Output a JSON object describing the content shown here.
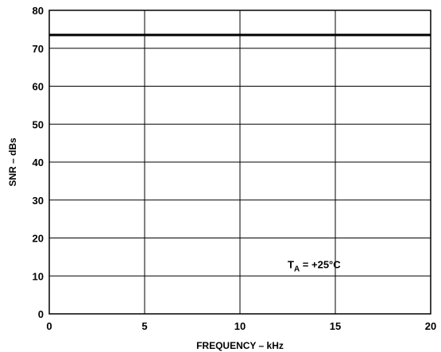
{
  "chart_data": {
    "type": "line",
    "title": "",
    "xlabel": "FREQUENCY – kHz",
    "ylabel": "SNR – dBs",
    "xlim": [
      0,
      20
    ],
    "ylim": [
      0,
      80
    ],
    "x_ticks": [
      0,
      5,
      10,
      15,
      20
    ],
    "y_ticks": [
      0,
      10,
      20,
      30,
      40,
      50,
      60,
      70,
      80
    ],
    "grid": true,
    "series": [
      {
        "x": [
          0,
          20
        ],
        "y": [
          73.5,
          73.5
        ]
      }
    ],
    "annotation": {
      "prefix": "T",
      "subscript": "A",
      "suffix": " = +25°C",
      "x": 12.5,
      "y": 12
    }
  }
}
